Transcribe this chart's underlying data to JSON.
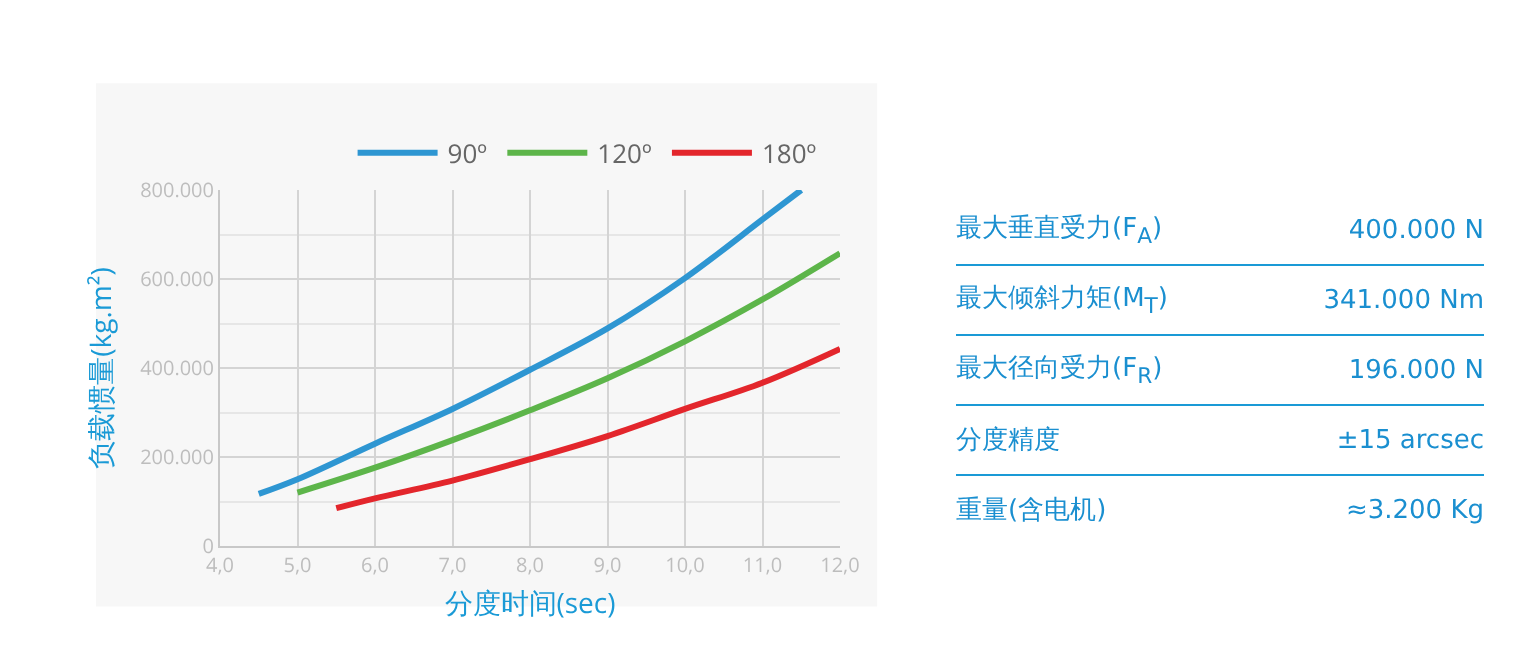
{
  "chart_data": [
    {
      "type": "line",
      "xlabel": "分度时间(sec)",
      "ylabel": "负载惯量(kg.m²)",
      "series": [
        {
          "name": "90º",
          "color": "#2e96d2",
          "x": [
            4.5,
            5,
            6,
            7,
            8,
            9,
            10,
            11,
            11.5
          ],
          "values": [
            117000,
            150000,
            230000,
            308000,
            396000,
            489000,
            602000,
            734000,
            800000
          ]
        },
        {
          "name": "120º",
          "color": "#5db54a",
          "x": [
            5,
            6,
            7,
            8,
            9,
            10,
            11,
            12
          ],
          "values": [
            120000,
            176000,
            238000,
            305000,
            377000,
            460000,
            554000,
            658000
          ]
        },
        {
          "name": "180º",
          "color": "#e3262c",
          "x": [
            5.5,
            6,
            7,
            8,
            9,
            10,
            11,
            12
          ],
          "values": [
            85000,
            107000,
            147000,
            195000,
            247000,
            308000,
            367000,
            443000
          ]
        }
      ],
      "xlim": [
        4,
        12
      ],
      "xticks": [
        {
          "value": 4,
          "label": "4,0"
        },
        {
          "value": 5,
          "label": "5,0"
        },
        {
          "value": 6,
          "label": "6,0"
        },
        {
          "value": 7,
          "label": "7,0"
        },
        {
          "value": 8,
          "label": "8,0"
        },
        {
          "value": 9,
          "label": "9,0"
        },
        {
          "value": 10,
          "label": "10,0"
        },
        {
          "value": 11,
          "label": "11,0"
        },
        {
          "value": 12,
          "label": "12,0"
        }
      ],
      "ylim": [
        0,
        800000
      ],
      "yticks": [
        0,
        {
          "value": 200000,
          "label": "200.000"
        },
        {
          "value": 400000,
          "label": "400.000"
        },
        {
          "value": 600000,
          "label": "600.000"
        },
        {
          "value": 800000,
          "label": "800.000"
        }
      ],
      "grid": true,
      "legend": "top",
      "line_style": "solid"
    },
    {
      "type": "other",
      "annotations": [
        "最大垂直受力(F$_{A}$)",
        "400.000 N",
        "最大倾斜力矩(M$_{T}$)",
        "341.000 Nm",
        "最大径向受力(F$_{R}$)",
        "196.000 N",
        "分度精度",
        "±15 arcsec",
        "重量(含电机)",
        "≈3.200 Kg"
      ]
    }
  ]
}
